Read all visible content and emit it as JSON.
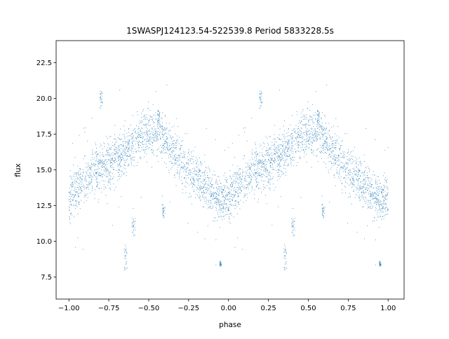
{
  "chart_data": {
    "type": "scatter",
    "title": "1SWASPJ124123.54-522539.8 Period 5833228.5s",
    "xlabel": "phase",
    "ylabel": "flux",
    "xlim": [
      -1.08,
      1.1
    ],
    "ylim": [
      5.95,
      24.05
    ],
    "xticks": [
      -1.0,
      -0.75,
      -0.5,
      -0.25,
      0.0,
      0.25,
      0.5,
      0.75,
      1.0
    ],
    "xtick_labels": [
      "−1.00",
      "−0.75",
      "−0.50",
      "−0.25",
      "0.00",
      "0.25",
      "0.50",
      "0.75",
      "1.00"
    ],
    "yticks": [
      7.5,
      10.0,
      12.5,
      15.0,
      17.5,
      20.0,
      22.5
    ],
    "ytick_labels": [
      "7.5",
      "10.0",
      "12.5",
      "15.0",
      "17.5",
      "20.0",
      "22.5"
    ],
    "grid": false,
    "legend": "none",
    "marker_color": "#1f77b4",
    "series": [
      {
        "phase_range": [
          -1.0,
          1.0
        ],
        "repeats_every": 1.0,
        "x": [
          -1.0,
          -0.96,
          -0.92,
          -0.88,
          -0.84,
          -0.8,
          -0.76,
          -0.72,
          -0.68,
          -0.64,
          -0.6,
          -0.56,
          -0.52,
          -0.48,
          -0.44,
          -0.4,
          -0.36,
          -0.32,
          -0.28,
          -0.24,
          -0.2,
          -0.16,
          -0.12,
          -0.08,
          -0.04
        ],
        "y": [
          13.0,
          13.5,
          14.1,
          14.5,
          14.8,
          15.1,
          15.4,
          15.7,
          16.0,
          16.4,
          16.8,
          17.2,
          17.4,
          17.6,
          17.6,
          17.2,
          16.4,
          15.8,
          15.4,
          15.0,
          14.6,
          14.2,
          13.7,
          13.2,
          12.9
        ],
        "scatter": 0.8,
        "outlier_groups": [
          {
            "x": [
              -0.805,
              -0.79
            ],
            "y": [
              19.0,
              20.6
            ]
          },
          {
            "x": [
              -0.655,
              -0.635
            ],
            "y": [
              7.8,
              9.8
            ]
          },
          {
            "x": [
              -0.605,
              -0.585
            ],
            "y": [
              10.3,
              11.8
            ]
          },
          {
            "x": [
              -0.445,
              -0.43
            ],
            "y": [
              18.0,
              19.2
            ]
          },
          {
            "x": [
              -0.415,
              -0.395
            ],
            "y": [
              11.6,
              12.6
            ]
          },
          {
            "x": [
              -0.055,
              -0.045
            ],
            "y": [
              8.2,
              8.6
            ]
          }
        ]
      }
    ]
  }
}
